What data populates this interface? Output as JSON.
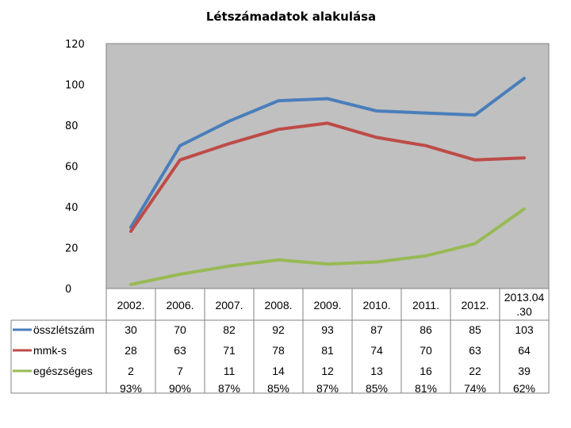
{
  "chart_data": {
    "type": "line",
    "title": "Létszámadatok alakulása",
    "xlabel": "",
    "ylabel": "",
    "ylim": [
      0,
      120
    ],
    "yticks": [
      0,
      20,
      40,
      60,
      80,
      100,
      120
    ],
    "grid": false,
    "legend_position": "left table",
    "categories": [
      "2002.",
      "2006.",
      "2007.",
      "2008.",
      "2009.",
      "2010.",
      "2011.",
      "2012.",
      "2013.04.30"
    ],
    "category_lines": [
      [
        "2002."
      ],
      [
        "2006."
      ],
      [
        "2007."
      ],
      [
        "2008."
      ],
      [
        "2009."
      ],
      [
        "2010."
      ],
      [
        "2011."
      ],
      [
        "2012."
      ],
      [
        "2013.04",
        ".30"
      ]
    ],
    "series": [
      {
        "name": "összlétszám",
        "color": "#4a7ebb",
        "values": [
          30,
          70,
          82,
          92,
          93,
          87,
          86,
          85,
          103
        ]
      },
      {
        "name": "mmk-s",
        "color": "#be4b48",
        "values": [
          28,
          63,
          71,
          78,
          81,
          74,
          70,
          63,
          64
        ]
      },
      {
        "name": "egészséges",
        "color": "#98b954",
        "values": [
          2,
          7,
          11,
          14,
          12,
          13,
          16,
          22,
          39
        ]
      }
    ],
    "extra_row": [
      "93%",
      "90%",
      "87%",
      "85%",
      "87%",
      "85%",
      "81%",
      "74%",
      "62%"
    ]
  }
}
